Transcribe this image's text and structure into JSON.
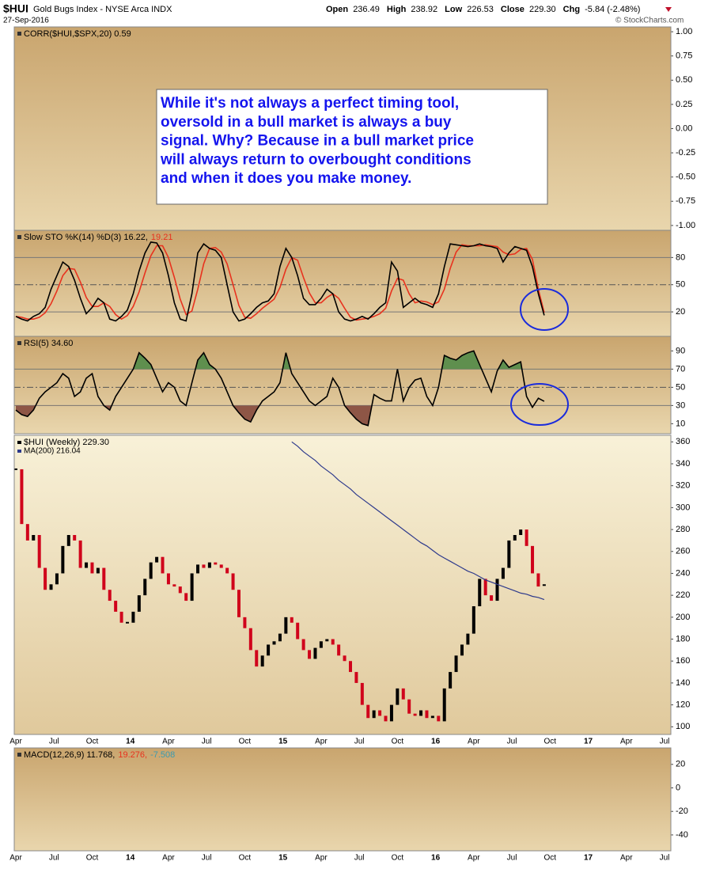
{
  "header": {
    "symbol": "$HUI",
    "name": "Gold Bugs Index - NYSE Arca INDX",
    "date": "27-Sep-2016",
    "quote": [
      {
        "label": "Open",
        "value": "236.49"
      },
      {
        "label": "High",
        "value": "238.92"
      },
      {
        "label": "Low",
        "value": "226.53"
      },
      {
        "label": "Close",
        "value": "229.30"
      },
      {
        "label": "Chg",
        "value": "-5.84 (-2.48%)"
      }
    ],
    "source": "© StockCharts.com"
  },
  "chart_data": [
    {
      "type": "line",
      "legend": [
        {
          "text": "CORR($HUI,$SPX,20) 0.59",
          "color": "#000000"
        }
      ],
      "ylim": [
        -1.05,
        1.05
      ],
      "yticks": [
        {
          "value": 1,
          "label": "1.00"
        },
        {
          "value": 0.75,
          "label": "0.75"
        },
        {
          "value": 0.5,
          "label": "0.50"
        },
        {
          "value": 0.25,
          "label": "0.25"
        },
        {
          "value": 0,
          "label": "0.00"
        },
        {
          "value": -0.25,
          "label": "-0.25"
        },
        {
          "value": -0.5,
          "label": "-0.50"
        },
        {
          "value": -0.75,
          "label": "-0.75"
        },
        {
          "value": -1,
          "label": "-1.00"
        }
      ],
      "annotation": [
        "While it's not always a perfect timing tool,",
        "oversold in a bull market is always a buy",
        "signal. Why? Because in a bull market price",
        "will always return to overbought conditions",
        "and when it does you make money."
      ]
    },
    {
      "type": "line",
      "legend": [
        {
          "text": "Slow STO %K(14) %D(3) 16.22,",
          "color": "#000000"
        },
        {
          "text": "19.21",
          "color": "#e8321e"
        }
      ],
      "ylim": [
        -7,
        110
      ],
      "yticks": [
        80,
        50,
        20
      ],
      "grid": [
        "solid",
        "dash",
        "solid"
      ],
      "series": [
        {
          "name": "%K(14)",
          "color": "#e8321e",
          "values": [
            15,
            14,
            12,
            12,
            14,
            19,
            29,
            43,
            60,
            68,
            67,
            53,
            36,
            26,
            26,
            30,
            26,
            17,
            12,
            16,
            26,
            42,
            63,
            82,
            93,
            93,
            80,
            58,
            34,
            17,
            21,
            45,
            73,
            90,
            91,
            86,
            73,
            50,
            27,
            14,
            13,
            18,
            24,
            29,
            34,
            47,
            67,
            80,
            77,
            58,
            41,
            30,
            30,
            36,
            40,
            35,
            24,
            14,
            11,
            12,
            13,
            15,
            18,
            24,
            43,
            57,
            55,
            40,
            30,
            32,
            31,
            28,
            31,
            45,
            68,
            86,
            94,
            93,
            93,
            93,
            94,
            93,
            92,
            86,
            83,
            84,
            89,
            90,
            78,
            45,
            19.21
          ]
        },
        {
          "name": "%D(3)",
          "color": "#000000",
          "values": [
            15,
            12,
            10,
            15,
            18,
            25,
            45,
            60,
            75,
            70,
            55,
            35,
            18,
            25,
            35,
            30,
            12,
            10,
            15,
            22,
            40,
            65,
            85,
            97,
            96,
            85,
            60,
            30,
            12,
            10,
            40,
            85,
            95,
            90,
            88,
            80,
            50,
            20,
            10,
            12,
            18,
            25,
            30,
            32,
            40,
            70,
            90,
            80,
            60,
            35,
            28,
            28,
            35,
            45,
            40,
            20,
            12,
            10,
            12,
            15,
            12,
            18,
            25,
            30,
            75,
            65,
            25,
            30,
            35,
            30,
            28,
            25,
            40,
            70,
            95,
            94,
            93,
            92,
            93,
            95,
            93,
            92,
            90,
            75,
            85,
            92,
            90,
            88,
            70,
            40,
            16.22
          ]
        }
      ]
    },
    {
      "type": "line",
      "legend": [
        {
          "text": "RSI(5) 34.60",
          "color": "#000000"
        }
      ],
      "ylim": [
        -1,
        106
      ],
      "yticks": [
        90,
        70,
        50,
        30,
        10
      ],
      "grid": [
        "none",
        "solid",
        "dash",
        "solid",
        "none"
      ],
      "fill_colors": [
        "#5f8f4e",
        "#8e5646"
      ],
      "series": [
        {
          "name": "RSI(5)",
          "color": "#000000",
          "values": [
            25,
            20,
            18,
            25,
            38,
            45,
            50,
            55,
            65,
            60,
            40,
            45,
            60,
            65,
            40,
            30,
            25,
            40,
            50,
            60,
            70,
            88,
            82,
            75,
            60,
            45,
            55,
            50,
            35,
            30,
            55,
            80,
            88,
            75,
            70,
            60,
            45,
            30,
            22,
            15,
            12,
            25,
            35,
            40,
            45,
            55,
            88,
            65,
            55,
            45,
            35,
            30,
            35,
            40,
            60,
            50,
            30,
            22,
            15,
            10,
            8,
            42,
            38,
            35,
            35,
            70,
            35,
            50,
            58,
            60,
            40,
            30,
            50,
            85,
            82,
            80,
            85,
            88,
            90,
            75,
            60,
            45,
            68,
            80,
            72,
            75,
            78,
            40,
            28,
            38,
            34.6
          ]
        }
      ]
    },
    {
      "type": "candlestick",
      "ylim": [
        93,
        366
      ],
      "yticks": [
        100,
        120,
        140,
        160,
        180,
        200,
        220,
        240,
        260,
        280,
        300,
        320,
        340,
        360
      ],
      "xticks": [
        "Apr",
        "Jul",
        "Oct",
        "14",
        "Apr",
        "Jul",
        "Oct",
        "15",
        "Apr",
        "Jul",
        "Oct",
        "16",
        "Apr",
        "Jul",
        "Oct",
        "17",
        "Apr",
        "Jul"
      ],
      "series": [
        {
          "name": "$HUI (Weekly) 229.30",
          "color": "#000000",
          "down_color": "#d0021b",
          "values": [
            335,
            285,
            270,
            275,
            245,
            225,
            230,
            240,
            265,
            275,
            270,
            245,
            250,
            240,
            245,
            225,
            215,
            205,
            195,
            195,
            205,
            220,
            235,
            250,
            255,
            240,
            230,
            228,
            222,
            215,
            240,
            248,
            245,
            250,
            248,
            245,
            240,
            225,
            200,
            190,
            170,
            155,
            165,
            175,
            178,
            185,
            200,
            195,
            180,
            170,
            162,
            172,
            178,
            180,
            175,
            165,
            160,
            150,
            140,
            120,
            108,
            115,
            110,
            105,
            120,
            135,
            125,
            112,
            110,
            115,
            108,
            110,
            105,
            135,
            150,
            165,
            175,
            185,
            210,
            235,
            220,
            215,
            235,
            245,
            270,
            275,
            280,
            265,
            240,
            228,
            229.3
          ]
        },
        {
          "name": "MA(200) 216.04",
          "color": "#2e3a8c",
          "values": [
            null,
            null,
            null,
            null,
            null,
            null,
            null,
            null,
            null,
            null,
            null,
            null,
            null,
            null,
            null,
            null,
            null,
            null,
            null,
            null,
            null,
            null,
            null,
            null,
            null,
            null,
            null,
            null,
            null,
            null,
            null,
            null,
            null,
            null,
            null,
            null,
            null,
            null,
            null,
            null,
            null,
            null,
            null,
            null,
            null,
            null,
            null,
            360,
            356,
            351,
            347,
            343,
            338,
            334,
            330,
            325,
            321,
            317,
            312,
            308,
            304,
            300,
            296,
            292,
            288,
            284,
            280,
            276,
            272,
            268,
            265,
            261,
            257,
            254,
            251,
            248,
            245,
            242,
            240,
            237,
            234,
            232,
            230,
            228,
            226,
            224,
            222,
            221,
            219,
            218,
            216.04
          ]
        }
      ]
    },
    {
      "type": "line",
      "legend": [
        {
          "text": "MACD(12,26,9) 11.768,",
          "color": "#000000"
        },
        {
          "text": "19.276,",
          "color": "#e8321e"
        },
        {
          "text": "-7.508",
          "color": "#3a9ab0"
        }
      ],
      "ylim": [
        -53.5,
        34
      ],
      "yticks": [
        20,
        0,
        -20,
        -40
      ],
      "xticks": [
        "Apr",
        "Jul",
        "Oct",
        "14",
        "Apr",
        "Jul",
        "Oct",
        "15",
        "Apr",
        "Jul",
        "Oct",
        "16",
        "Apr",
        "Jul",
        "Oct",
        "17",
        "Apr",
        "Jul"
      ]
    }
  ]
}
